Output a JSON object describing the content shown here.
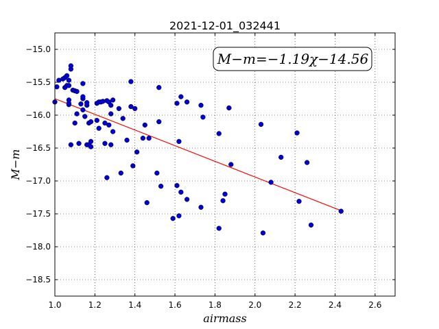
{
  "chart_data": {
    "type": "scatter",
    "title": "2021-12-01_032441",
    "xlabel": "airmass",
    "ylabel": "M−m",
    "xlim": [
      1.0,
      2.7
    ],
    "ylim": [
      -18.75,
      -14.75
    ],
    "y_inverted": true,
    "grid": true,
    "x_ticks": [
      1.0,
      1.2,
      1.4,
      1.6,
      1.8,
      2.0,
      2.2,
      2.4,
      2.6
    ],
    "x_tick_labels": [
      "1.0",
      "1.2",
      "1.4",
      "1.6",
      "1.8",
      "2.0",
      "2.2",
      "2.4",
      "2.6"
    ],
    "y_ticks": [
      -15.0,
      -15.5,
      -16.0,
      -16.5,
      -17.0,
      -17.5,
      -18.0,
      -18.5
    ],
    "y_tick_labels": [
      "−15.0",
      "−15.5",
      "−16.0",
      "−16.5",
      "−17.0",
      "−17.5",
      "−18.0",
      "−18.5"
    ],
    "annotation": "M−m=−1.19χ−14.56",
    "fit_line": {
      "slope": -1.19,
      "intercept": -14.56,
      "x_range": [
        1.0,
        2.43
      ],
      "color": "#ff0000"
    },
    "series": [
      {
        "color": "#0000cc",
        "points": [
          [
            1.0,
            -15.8
          ],
          [
            1.01,
            -15.57
          ],
          [
            1.02,
            -15.47
          ],
          [
            1.04,
            -15.45
          ],
          [
            1.05,
            -15.58
          ],
          [
            1.05,
            -15.43
          ],
          [
            1.06,
            -15.4
          ],
          [
            1.06,
            -15.55
          ],
          [
            1.07,
            -15.47
          ],
          [
            1.07,
            -15.84
          ],
          [
            1.07,
            -15.82
          ],
          [
            1.07,
            -15.77
          ],
          [
            1.07,
            -15.55
          ],
          [
            1.08,
            -15.3
          ],
          [
            1.08,
            -15.25
          ],
          [
            1.08,
            -16.45
          ],
          [
            1.09,
            -15.62
          ],
          [
            1.1,
            -15.63
          ],
          [
            1.1,
            -16.12
          ],
          [
            1.11,
            -15.64
          ],
          [
            1.11,
            -15.98
          ],
          [
            1.12,
            -16.43
          ],
          [
            1.13,
            -15.83
          ],
          [
            1.14,
            -15.75
          ],
          [
            1.14,
            -15.52
          ],
          [
            1.14,
            -15.72
          ],
          [
            1.14,
            -15.92
          ],
          [
            1.15,
            -16.02
          ],
          [
            1.16,
            -15.85
          ],
          [
            1.16,
            -15.81
          ],
          [
            1.16,
            -16.45
          ],
          [
            1.17,
            -16.12
          ],
          [
            1.17,
            -16.45
          ],
          [
            1.18,
            -16.4
          ],
          [
            1.18,
            -16.48
          ],
          [
            1.18,
            -16.1
          ],
          [
            1.21,
            -15.82
          ],
          [
            1.21,
            -16.08
          ],
          [
            1.22,
            -15.8
          ],
          [
            1.22,
            -16.2
          ],
          [
            1.23,
            -15.8
          ],
          [
            1.24,
            -15.79
          ],
          [
            1.25,
            -16.12
          ],
          [
            1.25,
            -16.43
          ],
          [
            1.26,
            -16.95
          ],
          [
            1.26,
            -15.78
          ],
          [
            1.27,
            -15.8
          ],
          [
            1.27,
            -16.15
          ],
          [
            1.28,
            -15.85
          ],
          [
            1.28,
            -16.45
          ],
          [
            1.28,
            -15.98
          ],
          [
            1.29,
            -15.77
          ],
          [
            1.29,
            -16.25
          ],
          [
            1.32,
            -15.9
          ],
          [
            1.33,
            -16.88
          ],
          [
            1.34,
            -16.05
          ],
          [
            1.36,
            -16.38
          ],
          [
            1.38,
            -15.87
          ],
          [
            1.38,
            -15.49
          ],
          [
            1.39,
            -16.77
          ],
          [
            1.4,
            -15.9
          ],
          [
            1.41,
            -16.56
          ],
          [
            1.44,
            -16.35
          ],
          [
            1.45,
            -16.15
          ],
          [
            1.46,
            -17.33
          ],
          [
            1.47,
            -16.35
          ],
          [
            1.51,
            -16.88
          ],
          [
            1.52,
            -16.1
          ],
          [
            1.52,
            -15.58
          ],
          [
            1.53,
            -17.08
          ],
          [
            1.59,
            -17.57
          ],
          [
            1.61,
            -17.07
          ],
          [
            1.61,
            -15.82
          ],
          [
            1.62,
            -16.4
          ],
          [
            1.62,
            -17.53
          ],
          [
            1.63,
            -17.17
          ],
          [
            1.63,
            -15.72
          ],
          [
            1.66,
            -17.28
          ],
          [
            1.66,
            -15.8
          ],
          [
            1.73,
            -15.85
          ],
          [
            1.73,
            -17.4
          ],
          [
            1.74,
            -16.03
          ],
          [
            1.82,
            -16.28
          ],
          [
            1.82,
            -17.72
          ],
          [
            1.84,
            -17.3
          ],
          [
            1.85,
            -17.2
          ],
          [
            1.87,
            -15.89
          ],
          [
            1.88,
            -16.75
          ],
          [
            2.03,
            -16.14
          ],
          [
            2.04,
            -17.79
          ],
          [
            2.08,
            -17.02
          ],
          [
            2.13,
            -16.64
          ],
          [
            2.21,
            -16.27
          ],
          [
            2.22,
            -17.31
          ],
          [
            2.26,
            -16.72
          ],
          [
            2.28,
            -17.67
          ],
          [
            2.43,
            -17.46
          ]
        ]
      }
    ]
  }
}
